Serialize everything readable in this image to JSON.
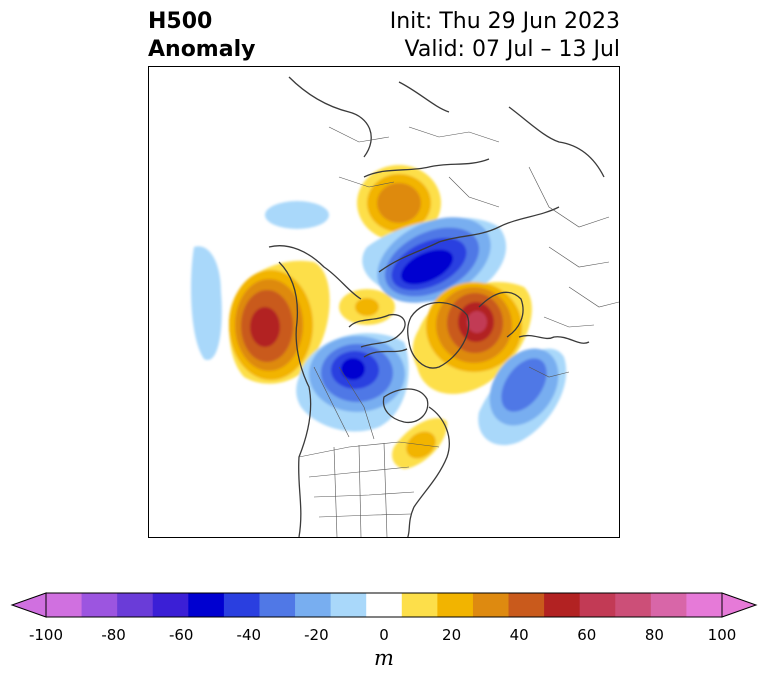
{
  "title": {
    "left_line1": "H500",
    "left_line2": "Anomaly",
    "right_line1": "Init: Thu 29 Jun 2023",
    "right_line2": "Valid: 07 Jul – 13 Jul"
  },
  "colorbar": {
    "units": "m",
    "extend": "both",
    "levels": [
      -100,
      -90,
      -80,
      -70,
      -60,
      -50,
      -40,
      -30,
      -20,
      -10,
      10,
      20,
      30,
      40,
      50,
      60,
      70,
      80,
      90,
      100
    ],
    "colors": [
      "#d070e0",
      "#9c55e0",
      "#6a3cd8",
      "#3b1fd6",
      "#0000d0",
      "#2a3fe0",
      "#5078e6",
      "#78aef0",
      "#a9d8fa",
      "#ffffff",
      "#fddf4a",
      "#f2b400",
      "#de8a10",
      "#c95a1c",
      "#b22222",
      "#c23a55",
      "#cc4f78",
      "#d866a8",
      "#e67ad8"
    ],
    "tick_labels": [
      "-100",
      "-80",
      "-60",
      "-40",
      "-20",
      "0",
      "20",
      "40",
      "60",
      "80",
      "100"
    ]
  }
}
